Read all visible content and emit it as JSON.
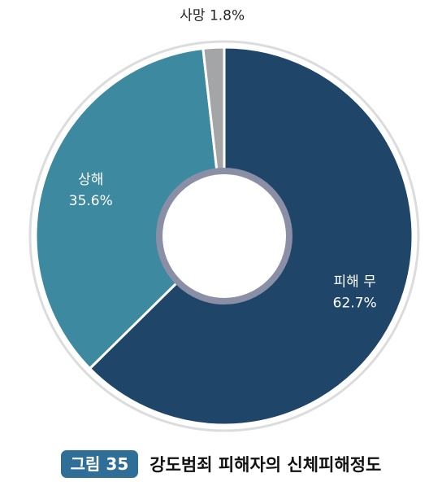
{
  "chart_data": {
    "type": "pie",
    "style": "donut",
    "slices": [
      {
        "label": "피해 무",
        "value": 62.7,
        "value_text": "62.7%",
        "color": "#1f4568",
        "label_color": "#ffffff"
      },
      {
        "label": "상해",
        "value": 35.6,
        "value_text": "35.6%",
        "color": "#3d8aa0",
        "label_color": "#ffffff"
      },
      {
        "label": "사망",
        "value": 1.8,
        "value_text": "1.8%",
        "color": "#a3a5a7",
        "label_color": "#222222"
      }
    ],
    "outer_ring_color": "#dcdcdc",
    "inner_ring_color": "#8a8fa6"
  },
  "caption": {
    "figure_label": "그림 35",
    "title": "강도범죄 피해자의 신체피해정도"
  }
}
